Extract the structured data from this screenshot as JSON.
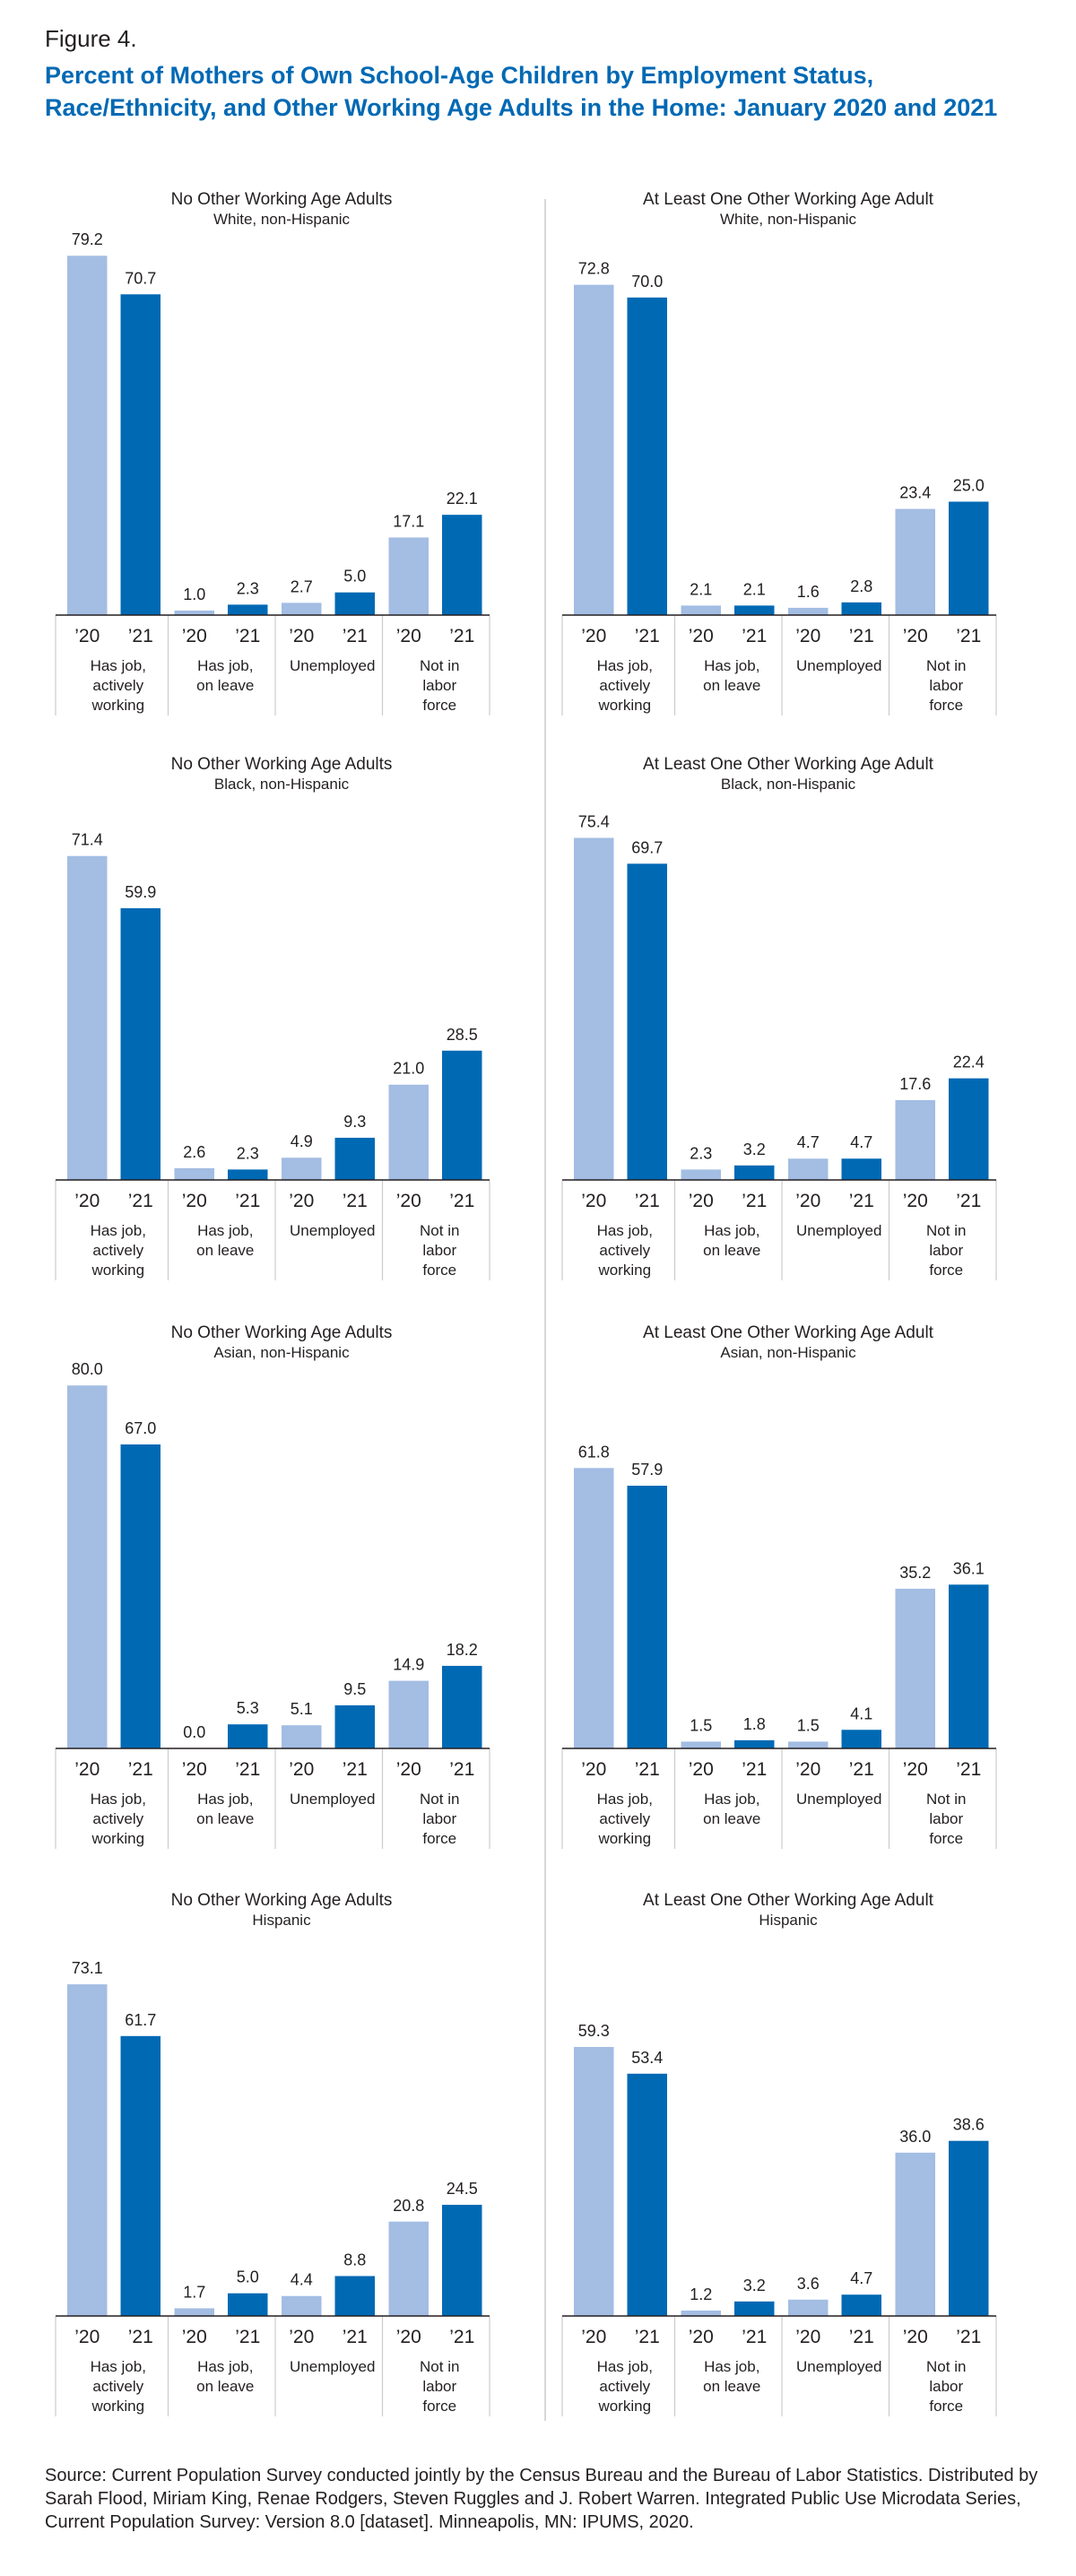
{
  "figure_label": "Figure 4.",
  "title": "Percent of Mothers of Own School-Age Children by Employment Status, Race/Ethnicity, and Other Working Age Adults in the Home: January 2020 and 2021",
  "source": "Source: Current Population Survey conducted jointly by the Census Bureau and the Bureau of Labor Statistics. Distributed by Sarah Flood, Miriam King, Renae Rodgers, Steven Ruggles and J. Robert Warren. Integrated Public Use Microdata Series, Current Population Survey: Version 8.0 [dataset]. Minneapolis, MN: IPUMS, 2020.",
  "colors": {
    "y2020": "#a3bde3",
    "y2021": "#0069b4",
    "divider": "#cccccc"
  },
  "chart_data": [
    {
      "type": "bar",
      "title": "No Other Working Age Adults",
      "subtitle": "White, non-Hispanic",
      "categories": [
        "Has job, actively working",
        "Has job, on leave",
        "Unemployed",
        "Not in labor force"
      ],
      "category_lines": [
        [
          "Has job,",
          "actively",
          "working"
        ],
        [
          "Has job,",
          "on leave"
        ],
        [
          "Unemployed"
        ],
        [
          "Not in",
          "labor",
          "force"
        ]
      ],
      "x_tick_labels": [
        "’20",
        "’21"
      ],
      "series": [
        {
          "name": "2020",
          "values": [
            79.2,
            1.0,
            2.7,
            17.1
          ]
        },
        {
          "name": "2021",
          "values": [
            70.7,
            2.3,
            5.0,
            22.1
          ]
        }
      ],
      "ylim": [
        0,
        80
      ]
    },
    {
      "type": "bar",
      "title": "At Least One Other Working Age Adult",
      "subtitle": "White, non-Hispanic",
      "categories": [
        "Has job, actively working",
        "Has job, on leave",
        "Unemployed",
        "Not in labor force"
      ],
      "category_lines": [
        [
          "Has job,",
          "actively",
          "working"
        ],
        [
          "Has job,",
          "on leave"
        ],
        [
          "Unemployed"
        ],
        [
          "Not in",
          "labor",
          "force"
        ]
      ],
      "x_tick_labels": [
        "’20",
        "’21"
      ],
      "series": [
        {
          "name": "2020",
          "values": [
            72.8,
            2.1,
            1.6,
            23.4
          ]
        },
        {
          "name": "2021",
          "values": [
            70.0,
            2.1,
            2.8,
            25.0
          ]
        }
      ],
      "ylim": [
        0,
        80
      ]
    },
    {
      "type": "bar",
      "title": "No Other Working Age Adults",
      "subtitle": "Black, non-Hispanic",
      "categories": [
        "Has job, actively working",
        "Has job, on leave",
        "Unemployed",
        "Not in labor force"
      ],
      "category_lines": [
        [
          "Has job,",
          "actively",
          "working"
        ],
        [
          "Has job,",
          "on leave"
        ],
        [
          "Unemployed"
        ],
        [
          "Not in",
          "labor",
          "force"
        ]
      ],
      "x_tick_labels": [
        "’20",
        "’21"
      ],
      "series": [
        {
          "name": "2020",
          "values": [
            71.4,
            2.6,
            4.9,
            21.0
          ]
        },
        {
          "name": "2021",
          "values": [
            59.9,
            2.3,
            9.3,
            28.5
          ]
        }
      ],
      "ylim": [
        0,
        80
      ]
    },
    {
      "type": "bar",
      "title": "At Least One Other Working Age Adult",
      "subtitle": "Black, non-Hispanic",
      "categories": [
        "Has job, actively working",
        "Has job, on leave",
        "Unemployed",
        "Not in labor force"
      ],
      "category_lines": [
        [
          "Has job,",
          "actively",
          "working"
        ],
        [
          "Has job,",
          "on leave"
        ],
        [
          "Unemployed"
        ],
        [
          "Not in",
          "labor",
          "force"
        ]
      ],
      "x_tick_labels": [
        "’20",
        "’21"
      ],
      "series": [
        {
          "name": "2020",
          "values": [
            75.4,
            2.3,
            4.7,
            17.6
          ]
        },
        {
          "name": "2021",
          "values": [
            69.7,
            3.2,
            4.7,
            22.4
          ]
        }
      ],
      "ylim": [
        0,
        80
      ]
    },
    {
      "type": "bar",
      "title": "No Other Working Age Adults",
      "subtitle": "Asian, non-Hispanic",
      "categories": [
        "Has job, actively working",
        "Has job, on leave",
        "Unemployed",
        "Not in labor force"
      ],
      "category_lines": [
        [
          "Has job,",
          "actively",
          "working"
        ],
        [
          "Has job,",
          "on leave"
        ],
        [
          "Unemployed"
        ],
        [
          "Not in",
          "labor",
          "force"
        ]
      ],
      "x_tick_labels": [
        "’20",
        "’21"
      ],
      "series": [
        {
          "name": "2020",
          "values": [
            80.0,
            0.0,
            5.1,
            14.9
          ]
        },
        {
          "name": "2021",
          "values": [
            67.0,
            5.3,
            9.5,
            18.2
          ]
        }
      ],
      "ylim": [
        0,
        80
      ]
    },
    {
      "type": "bar",
      "title": "At Least One Other Working Age Adult",
      "subtitle": "Asian, non-Hispanic",
      "categories": [
        "Has job, actively working",
        "Has job, on leave",
        "Unemployed",
        "Not in labor force"
      ],
      "category_lines": [
        [
          "Has job,",
          "actively",
          "working"
        ],
        [
          "Has job,",
          "on leave"
        ],
        [
          "Unemployed"
        ],
        [
          "Not in",
          "labor",
          "force"
        ]
      ],
      "x_tick_labels": [
        "’20",
        "’21"
      ],
      "series": [
        {
          "name": "2020",
          "values": [
            61.8,
            1.5,
            1.5,
            35.2
          ]
        },
        {
          "name": "2021",
          "values": [
            57.9,
            1.8,
            4.1,
            36.1
          ]
        }
      ],
      "ylim": [
        0,
        80
      ]
    },
    {
      "type": "bar",
      "title": "No Other Working Age Adults",
      "subtitle": "Hispanic",
      "categories": [
        "Has job, actively working",
        "Has job, on leave",
        "Unemployed",
        "Not in labor force"
      ],
      "category_lines": [
        [
          "Has job,",
          "actively",
          "working"
        ],
        [
          "Has job,",
          "on leave"
        ],
        [
          "Unemployed"
        ],
        [
          "Not in",
          "labor",
          "force"
        ]
      ],
      "x_tick_labels": [
        "’20",
        "’21"
      ],
      "series": [
        {
          "name": "2020",
          "values": [
            73.1,
            1.7,
            4.4,
            20.8
          ]
        },
        {
          "name": "2021",
          "values": [
            61.7,
            5.0,
            8.8,
            24.5
          ]
        }
      ],
      "ylim": [
        0,
        80
      ]
    },
    {
      "type": "bar",
      "title": "At Least One Other Working Age Adult",
      "subtitle": "Hispanic",
      "categories": [
        "Has job, actively working",
        "Has job, on leave",
        "Unemployed",
        "Not in labor force"
      ],
      "category_lines": [
        [
          "Has job,",
          "actively",
          "working"
        ],
        [
          "Has job,",
          "on leave"
        ],
        [
          "Unemployed"
        ],
        [
          "Not in",
          "labor",
          "force"
        ]
      ],
      "x_tick_labels": [
        "’20",
        "’21"
      ],
      "series": [
        {
          "name": "2020",
          "values": [
            59.3,
            1.2,
            3.6,
            36.0
          ]
        },
        {
          "name": "2021",
          "values": [
            53.4,
            3.2,
            4.7,
            38.6
          ]
        }
      ],
      "ylim": [
        0,
        80
      ]
    }
  ]
}
